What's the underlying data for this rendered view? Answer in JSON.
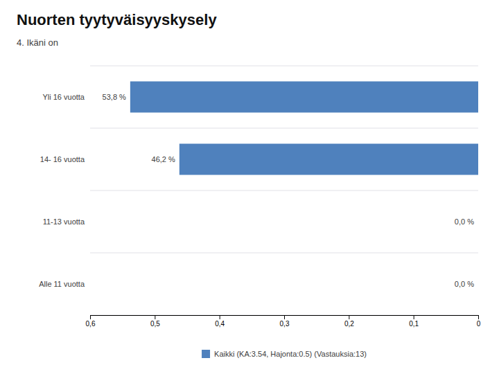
{
  "chart_data": {
    "type": "bar",
    "orientation": "horizontal",
    "title": "Nuorten tyytyväisyyskysely",
    "subtitle": "4. Ikäni on",
    "categories": [
      "Yli 16 vuotta",
      "14- 16 vuotta",
      "11-13 vuotta",
      "Alle 11 vuotta"
    ],
    "series": [
      {
        "name": "Kaikki (KA:3.54, Hajonta:0.5) (Vastauksia:13)",
        "color": "#4f81bd",
        "values": [
          0.538,
          0.462,
          0.0,
          0.0
        ],
        "value_labels": [
          "53,8 %",
          "46,2 %",
          "0,0 %",
          "0,0 %"
        ]
      }
    ],
    "xlim": [
      0.6,
      0.0
    ],
    "xticks": [
      {
        "value": 0.6,
        "label": "0,6"
      },
      {
        "value": 0.5,
        "label": "0,5"
      },
      {
        "value": 0.4,
        "label": "0,4"
      },
      {
        "value": 0.3,
        "label": "0,3"
      },
      {
        "value": 0.2,
        "label": "0,2"
      },
      {
        "value": 0.1,
        "label": "0,1"
      },
      0
    ],
    "data_labels": true,
    "legend": "bottom"
  }
}
